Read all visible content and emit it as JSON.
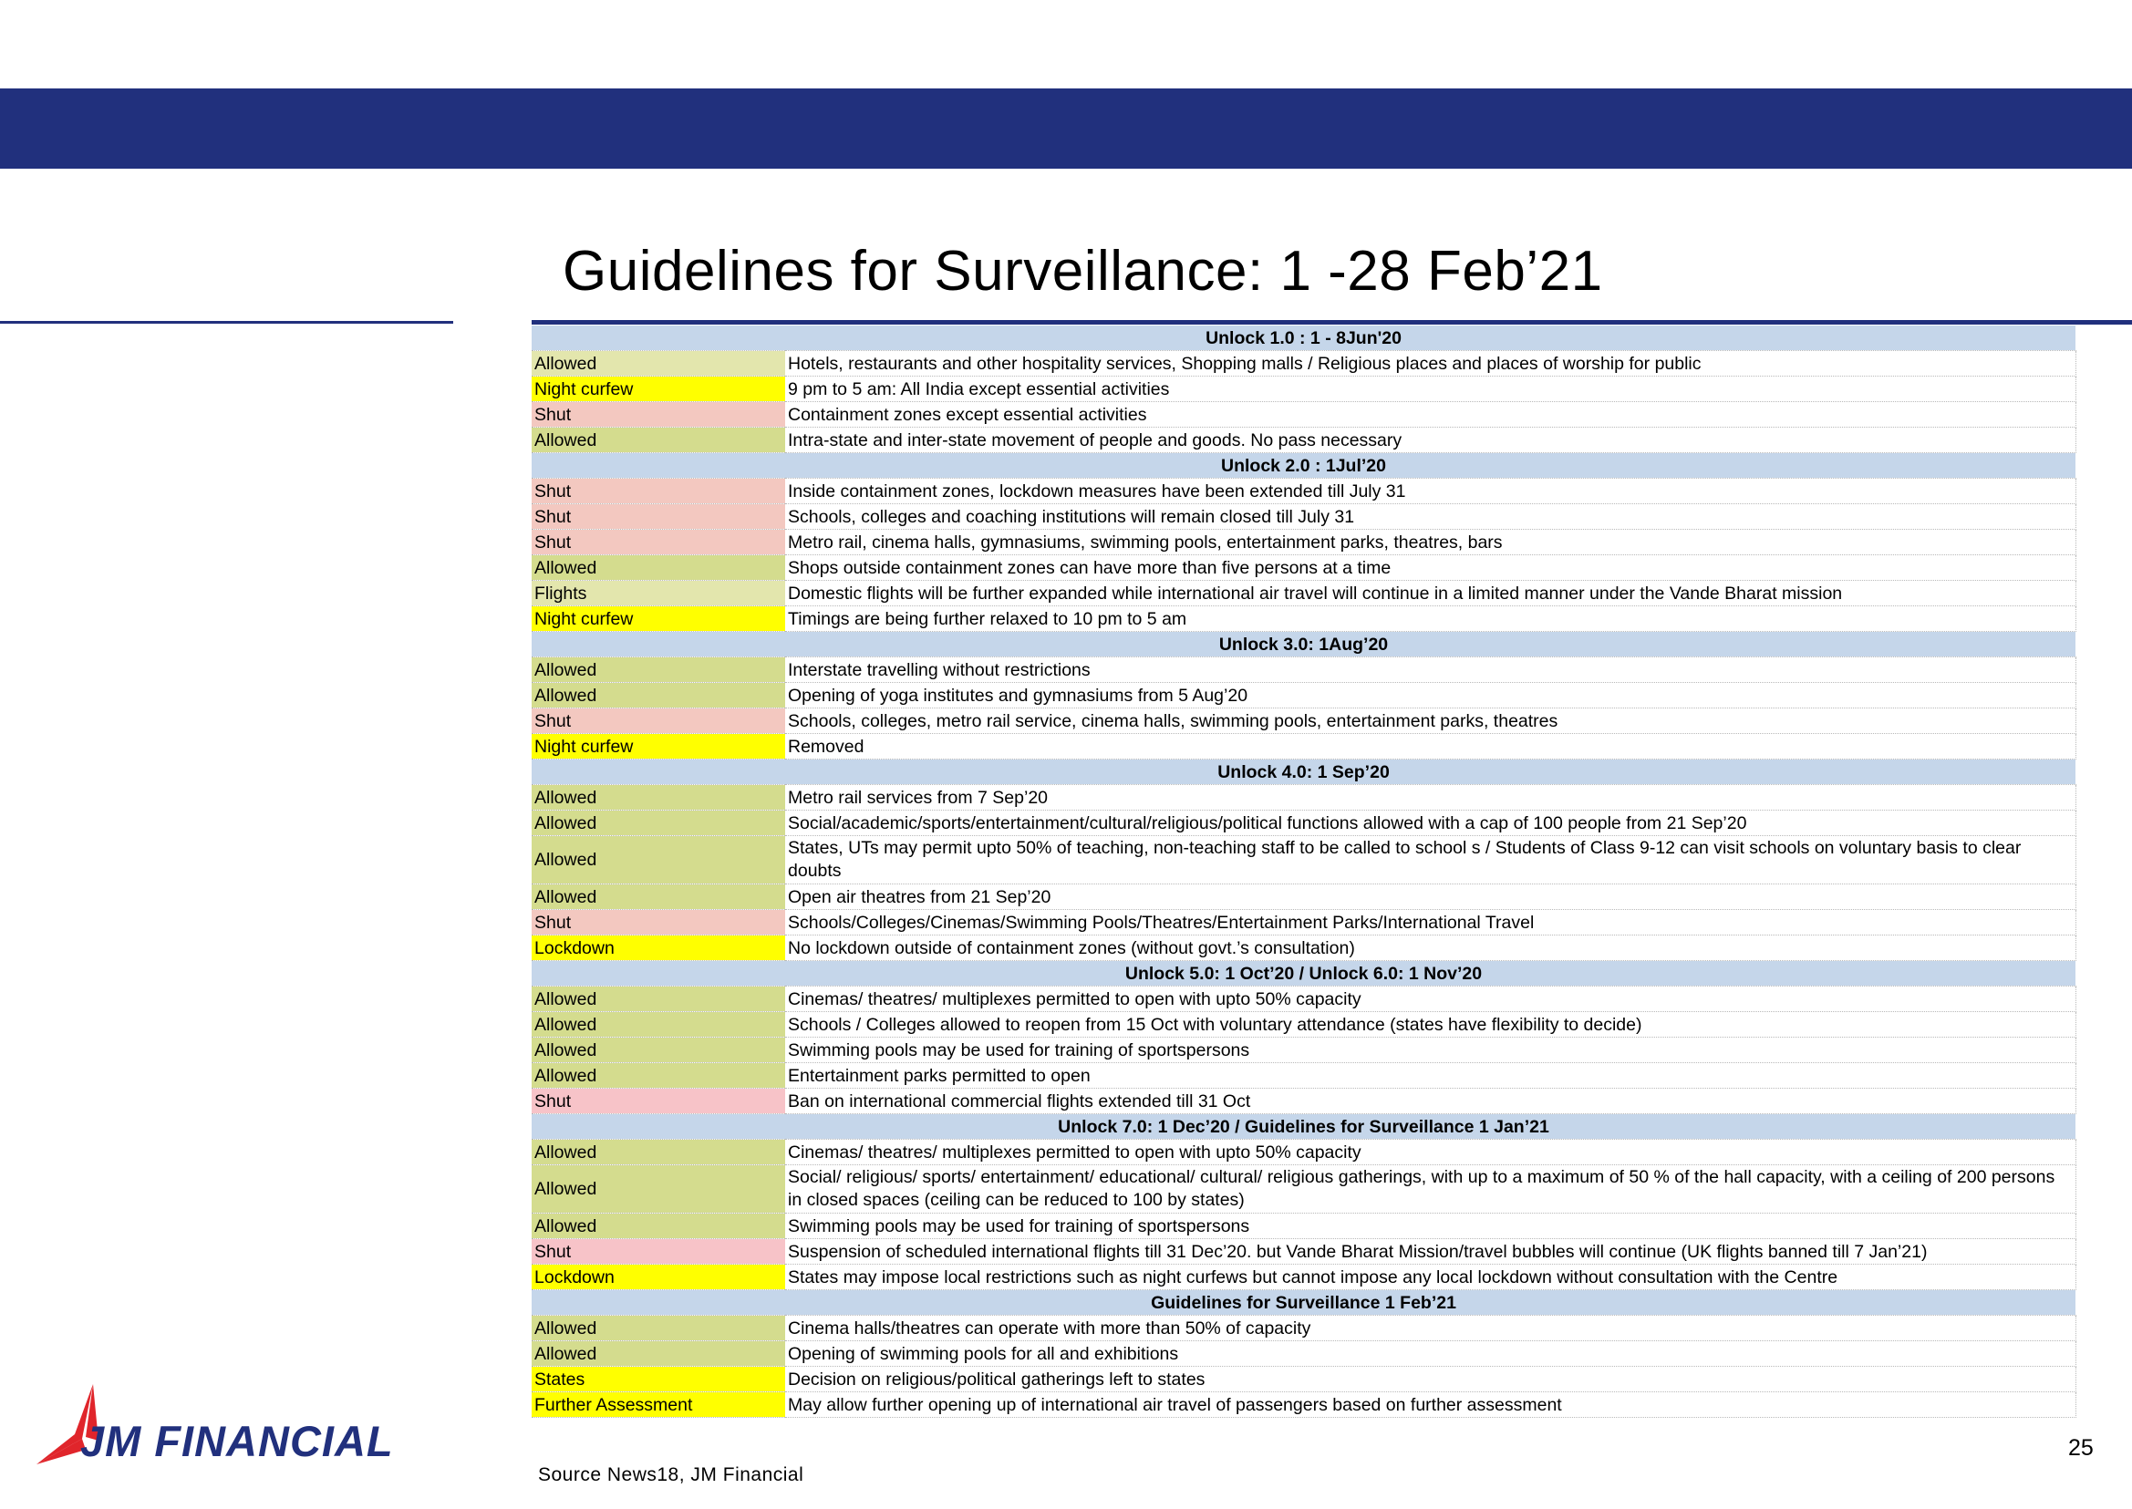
{
  "title": "Guidelines for Surveillance: 1 -28 Feb’21",
  "source": "Source News18, JM Financial",
  "page_number": "25",
  "logo_text": "JM FINANCIAL",
  "colors": {
    "band": "#21307d",
    "header_row": "#c5d6ea",
    "allowed": "#d4dc8e",
    "shut": "#f3c8c0",
    "night_curfew": "#ffff00",
    "logo_red": "#e0252b"
  },
  "sections": [
    {
      "header": "Unlock 1.0 : 1 - 8Jun'20",
      "rows": [
        {
          "status": "Allowed",
          "text": "Hotels, restaurants and other hospitality services, Shopping malls  / Religious places and places of worship for public"
        },
        {
          "status": "Night curfew",
          "text": "9 pm to 5 am: All India except essential activities"
        },
        {
          "status": "Shut",
          "text": "Containment zones except essential activities"
        },
        {
          "status": "Allowed",
          "text": "Intra-state and inter-state movement of people and goods. No pass necessary"
        }
      ]
    },
    {
      "header": "Unlock 2.0 : 1Jul’20",
      "rows": [
        {
          "status": "Shut",
          "text": "Inside containment zones, lockdown measures have been extended till July 31"
        },
        {
          "status": "Shut",
          "text": "Schools, colleges and coaching institutions will remain closed till July 31"
        },
        {
          "status": "Shut",
          "text": "Metro rail, cinema halls, gymnasiums, swimming pools, entertainment parks, theatres, bars"
        },
        {
          "status": "Allowed",
          "text": "Shops outside containment zones can have more than five persons at a time"
        },
        {
          "status": "Flights",
          "text": "Domestic flights will be further expanded while international air travel will continue in a limited manner under the Vande Bharat mission"
        },
        {
          "status": "Night curfew",
          "text": "Timings are being further relaxed to 10 pm to 5 am"
        }
      ]
    },
    {
      "header": "Unlock 3.0: 1Aug’20",
      "rows": [
        {
          "status": "Allowed",
          "text": "Interstate travelling without restrictions"
        },
        {
          "status": "Allowed",
          "text": "Opening of yoga institutes and gymnasiums from 5 Aug’20"
        },
        {
          "status": "Shut",
          "text": "Schools, colleges, metro rail service, cinema halls, swimming pools, entertainment parks, theatres"
        },
        {
          "status": "Night curfew",
          "text": "Removed"
        }
      ]
    },
    {
      "header": "Unlock 4.0: 1 Sep’20",
      "rows": [
        {
          "status": "Allowed",
          "text": "Metro rail services from 7 Sep’20"
        },
        {
          "status": "Allowed",
          "text": "Social/academic/sports/entertainment/cultural/religious/political functions  allowed with a cap of 100 people from 21 Sep’20"
        },
        {
          "status": "Allowed",
          "text": "States, UTs may permit upto 50% of teaching, non-teaching staff to be called to school s / Students of Class 9-12 can visit schools on voluntary basis to clear doubts"
        },
        {
          "status": "Allowed",
          "text": "Open air theatres from 21 Sep’20"
        },
        {
          "status": "Shut",
          "text": "Schools/Colleges/Cinemas/Swimming Pools/Theatres/Entertainment Parks/International Travel"
        },
        {
          "status": "Lockdown",
          "text": "No lockdown outside of containment zones (without govt.’s consultation)"
        }
      ]
    },
    {
      "header": "Unlock 5.0: 1 Oct’20 / Unlock 6.0: 1 Nov’20",
      "rows": [
        {
          "status": "Allowed",
          "text": "Cinemas/ theatres/ multiplexes permitted to open with upto 50% capacity"
        },
        {
          "status": "Allowed",
          "text": "Schools / Colleges allowed to reopen from 15 Oct with voluntary attendance (states have flexibility to decide)"
        },
        {
          "status": "Allowed",
          "text": "Swimming pools may be used for training of sportspersons"
        },
        {
          "status": "Allowed",
          "text": "Entertainment parks permitted to open"
        },
        {
          "status": "Shut",
          "text": "Ban on international commercial flights extended till 31 Oct"
        }
      ]
    },
    {
      "header": "Unlock 7.0: 1 Dec’20 / Guidelines for Surveillance 1 Jan’21",
      "rows": [
        {
          "status": "Allowed",
          "text": "Cinemas/ theatres/ multiplexes permitted to open with upto 50% capacity"
        },
        {
          "status": "Allowed",
          "text": "Social/ religious/ sports/ entertainment/ educational/ cultural/ religious gatherings, with up to a maximum of 50 % of the hall capacity, with a ceiling of 200 persons in closed spaces (ceiling can be reduced to 100 by states)"
        },
        {
          "status": "Allowed",
          "text": "Swimming pools may be used for training of sportspersons"
        },
        {
          "status": "Shut",
          "text": "Suspension of scheduled international flights till 31 Dec’20. but  Vande Bharat Mission/travel bubbles will continue (UK flights banned till 7 Jan’21)"
        },
        {
          "status": "Lockdown",
          "text": "States may impose local restrictions such as night curfews but cannot impose any local lockdown without consultation with the Centre"
        }
      ]
    },
    {
      "header": "Guidelines for Surveillance 1 Feb’21",
      "rows": [
        {
          "status": "Allowed",
          "text": "Cinema halls/theatres can operate with more than 50% of capacity"
        },
        {
          "status": "Allowed",
          "text": "Opening of swimming pools for all and exhibitions"
        },
        {
          "status": "States",
          "text": "Decision on religious/political gatherings left to states"
        },
        {
          "status": "Further Assessment",
          "text": "May allow further opening up of international air travel of passengers based on further assessment"
        }
      ]
    }
  ]
}
